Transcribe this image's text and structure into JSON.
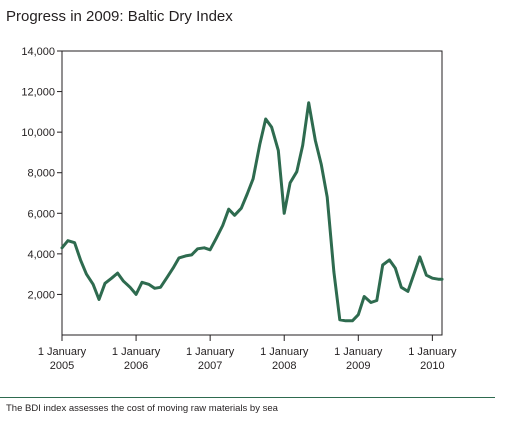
{
  "chart_data": {
    "type": "line",
    "title": "Progress in 2009: Baltic Dry Index",
    "xlabel": "",
    "ylabel": "",
    "ylim": [
      0,
      14000
    ],
    "xlim": [
      2005.0,
      2010.13
    ],
    "y_ticks": [
      "2,000",
      "4,000",
      "6,000",
      "8,000",
      "10,000",
      "12,000",
      "14,000"
    ],
    "y_tick_values": [
      2000,
      4000,
      6000,
      8000,
      10000,
      12000,
      14000
    ],
    "x_ticks": [
      {
        "value": 2005,
        "line1": "1 January",
        "line2": "2005"
      },
      {
        "value": 2006,
        "line1": "1 January",
        "line2": "2006"
      },
      {
        "value": 2007,
        "line1": "1 January",
        "line2": "2007"
      },
      {
        "value": 2008,
        "line1": "1 January",
        "line2": "2008"
      },
      {
        "value": 2009,
        "line1": "1 January",
        "line2": "2009"
      },
      {
        "value": 2010,
        "line1": "1 January",
        "line2": "2010"
      }
    ],
    "line_color": "#2e6b4f",
    "series": [
      {
        "name": "",
        "x": [
          2005.0,
          2005.08,
          2005.17,
          2005.25,
          2005.33,
          2005.42,
          2005.5,
          2005.58,
          2005.67,
          2005.75,
          2005.83,
          2005.92,
          2006.0,
          2006.08,
          2006.17,
          2006.25,
          2006.33,
          2006.42,
          2006.5,
          2006.58,
          2006.67,
          2006.75,
          2006.83,
          2006.92,
          2007.0,
          2007.08,
          2007.17,
          2007.25,
          2007.33,
          2007.42,
          2007.5,
          2007.58,
          2007.67,
          2007.75,
          2007.83,
          2007.92,
          2008.0,
          2008.08,
          2008.17,
          2008.25,
          2008.33,
          2008.42,
          2008.5,
          2008.58,
          2008.67,
          2008.75,
          2008.83,
          2008.92,
          2009.0,
          2009.08,
          2009.17,
          2009.25,
          2009.33,
          2009.42,
          2009.5,
          2009.58,
          2009.67,
          2009.75,
          2009.83,
          2009.92,
          2010.0,
          2010.08,
          2010.13
        ],
        "y": [
          4300,
          4650,
          4550,
          3700,
          3000,
          2500,
          1750,
          2550,
          2800,
          3050,
          2650,
          2350,
          2000,
          2600,
          2500,
          2300,
          2350,
          2850,
          3300,
          3800,
          3900,
          3950,
          4250,
          4300,
          4200,
          4750,
          5400,
          6200,
          5900,
          6250,
          6950,
          7700,
          9400,
          10650,
          10250,
          9100,
          6000,
          7500,
          8050,
          9350,
          11450,
          9600,
          8400,
          6800,
          3100,
          750,
          700,
          700,
          1000,
          1900,
          1600,
          1700,
          3450,
          3700,
          3300,
          2350,
          2150,
          3000,
          3850,
          2950,
          2800,
          2750,
          2750
        ]
      }
    ]
  },
  "caption": "The BDI index assesses the cost of moving raw materials by sea"
}
